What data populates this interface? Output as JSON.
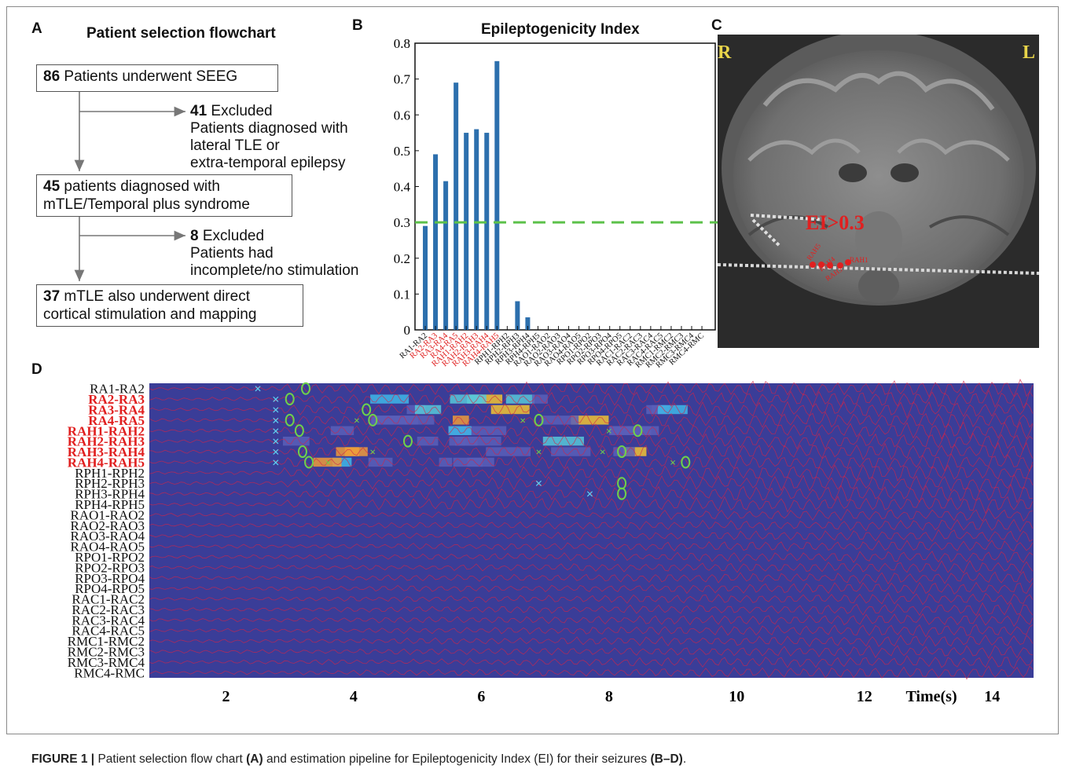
{
  "panels": {
    "a": "A",
    "b": "B",
    "c": "C",
    "d": "D"
  },
  "flowchart": {
    "title": "Patient selection flowchart",
    "box1": {
      "num": "86",
      "text": " Patients underwent SEEG"
    },
    "excl1": {
      "num": "41",
      "line1": " Excluded",
      "line2": "Patients diagnosed with",
      "line3": "lateral TLE or",
      "line4": "extra-temporal epilepsy"
    },
    "box2": {
      "num": "45",
      "line1": " patients diagnosed with",
      "line2": "mTLE/Temporal plus syndrome"
    },
    "excl2": {
      "num": "8",
      "line1": " Excluded",
      "line2": "Patients had",
      "line3": "incomplete/no stimulation"
    },
    "box3": {
      "num": "37",
      "line1": " mTLE also underwent direct",
      "line2": "cortical stimulation and mapping"
    }
  },
  "chart_data": {
    "type": "bar",
    "title": "Epileptogenicity Index",
    "ylim": [
      0,
      0.8
    ],
    "yticks": [
      "0",
      "0.1",
      "0.2",
      "0.3",
      "0.4",
      "0.5",
      "0.6",
      "0.7",
      "0.8"
    ],
    "threshold": 0.3,
    "bar_color": "#2c6fad",
    "threshold_color": "#5cc14a",
    "highlight_color": "#e02020",
    "categories": [
      "RA1-RA2",
      "RA2-RA3",
      "RA3-RA4",
      "RA4-RA5",
      "RAH1-RAH2",
      "RAH2-RAH3",
      "RAH3-RAH4",
      "RAH4-RAH5",
      "RPH1-RPH2",
      "RPH2-RPH3",
      "RPH3-RPH4",
      "RPH4-RPH5",
      "RAO1-RAO2",
      "RAO2-RAO3",
      "RAO3-RAO4",
      "RAO4-RAO5",
      "RPO1-RPO2",
      "RPO2-RPO3",
      "RPO3-RPO4",
      "RPO4-RPO5",
      "RAC1-RAC2",
      "RAC2-RAC3",
      "RAC3-RAC4",
      "RAC4-RAC5",
      "RMC1-RMC2",
      "RMC2-RMC3",
      "RMC3-RMC4",
      "RMC4-RMC"
    ],
    "values": [
      0.29,
      0.49,
      0.415,
      0.69,
      0.55,
      0.56,
      0.55,
      0.75,
      0.0,
      0.08,
      0.035,
      0,
      0,
      0,
      0,
      0,
      0,
      0,
      0,
      0,
      0,
      0,
      0,
      0,
      0,
      0,
      0,
      0
    ],
    "highlighted": [
      false,
      true,
      true,
      true,
      true,
      true,
      true,
      true,
      false,
      false,
      false,
      false,
      false,
      false,
      false,
      false,
      false,
      false,
      false,
      false,
      false,
      false,
      false,
      false,
      false,
      false,
      false,
      false
    ]
  },
  "mri": {
    "left_label": "R",
    "right_label": "L",
    "ei_label": "EI>0.3",
    "contacts": [
      "RAH5",
      "RAH4",
      "RAH3",
      "RAH1"
    ],
    "text_color": "#e8d44a",
    "ei_color": "#e02020"
  },
  "heatmap": {
    "channels": [
      "RA1-RA2",
      "RA2-RA3",
      "RA3-RA4",
      "RA4-RA5",
      "RAH1-RAH2",
      "RAH2-RAH3",
      "RAH3-RAH4",
      "RAH4-RAH5",
      "RPH1-RPH2",
      "RPH2-RPH3",
      "RPH3-RPH4",
      "RPH4-RPH5",
      "RAO1-RAO2",
      "RAO2-RAO3",
      "RAO3-RAO4",
      "RAO4-RAO5",
      "RPO1-RPO2",
      "RPO2-RPO3",
      "RPO3-RPO4",
      "RPO4-RPO5",
      "RAC1-RAC2",
      "RAC2-RAC3",
      "RAC3-RAC4",
      "RAC4-RAC5",
      "RMC1-RMC2",
      "RMC2-RMC3",
      "RMC3-RMC4",
      "RMC4-RMC"
    ],
    "highlighted": [
      false,
      true,
      true,
      true,
      true,
      true,
      true,
      true,
      false,
      false,
      false,
      false,
      false,
      false,
      false,
      false,
      false,
      false,
      false,
      false,
      false,
      false,
      false,
      false,
      false,
      false,
      false,
      false
    ],
    "xticks": [
      "2",
      "4",
      "6",
      "8",
      "10",
      "12",
      "14"
    ],
    "x_unit_label": "Time(s)",
    "background": "#3a3d98"
  },
  "caption": {
    "prefix": "FIGURE 1 | ",
    "t1": "Patient selection flow chart ",
    "b1": "(A)",
    "t2": " and estimation pipeline for Epileptogenicity Index (EI) for their seizures ",
    "b2": "(B–D)",
    "t3": "."
  }
}
